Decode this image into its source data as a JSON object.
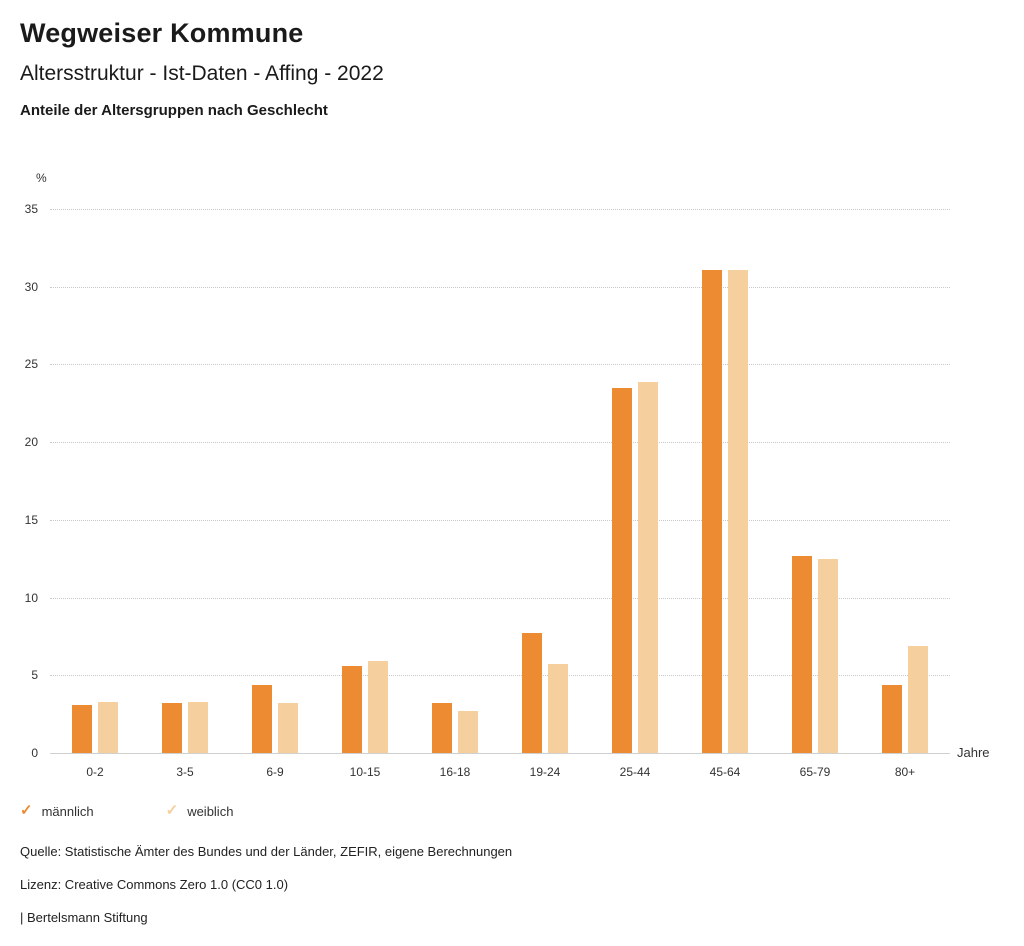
{
  "header": {
    "title": "Wegweiser Kommune",
    "subtitle": "Altersstruktur - Ist-Daten - Affing - 2022",
    "chart_heading": "Anteile der Altersgruppen nach Geschlecht"
  },
  "chart_data": {
    "type": "bar",
    "title": "Anteile der Altersgruppen nach Geschlecht",
    "unit_label": "%",
    "x_unit_label": "Jahre",
    "categories": [
      "0-2",
      "3-5",
      "6-9",
      "10-15",
      "16-18",
      "19-24",
      "25-44",
      "45-64",
      "65-79",
      "80+"
    ],
    "series": [
      {
        "name": "männlich",
        "color": "#ED8B33",
        "values": [
          3.1,
          3.2,
          4.4,
          5.6,
          3.2,
          7.7,
          23.5,
          31.1,
          12.7,
          4.4
        ]
      },
      {
        "name": "weiblich",
        "color": "#F6CF9E",
        "values": [
          3.3,
          3.3,
          3.2,
          5.9,
          2.7,
          5.7,
          23.9,
          31.1,
          12.5,
          6.9
        ]
      }
    ],
    "ylim": [
      0,
      35
    ],
    "yticks": [
      0,
      5,
      10,
      15,
      20,
      25,
      30,
      35
    ],
    "grid": "dotted horizontal",
    "legend_position": "bottom-left"
  },
  "legend": {
    "items": [
      {
        "label": "männlich",
        "color": "#ED8B33"
      },
      {
        "label": "weiblich",
        "color": "#F6CF9E"
      }
    ]
  },
  "footer": {
    "source": "Quelle: Statistische Ämter des Bundes und der Länder, ZEFIR, eigene Berechnungen",
    "license": "Lizenz: Creative Commons Zero 1.0 (CC0 1.0)",
    "attribution": "| Bertelsmann Stiftung"
  }
}
